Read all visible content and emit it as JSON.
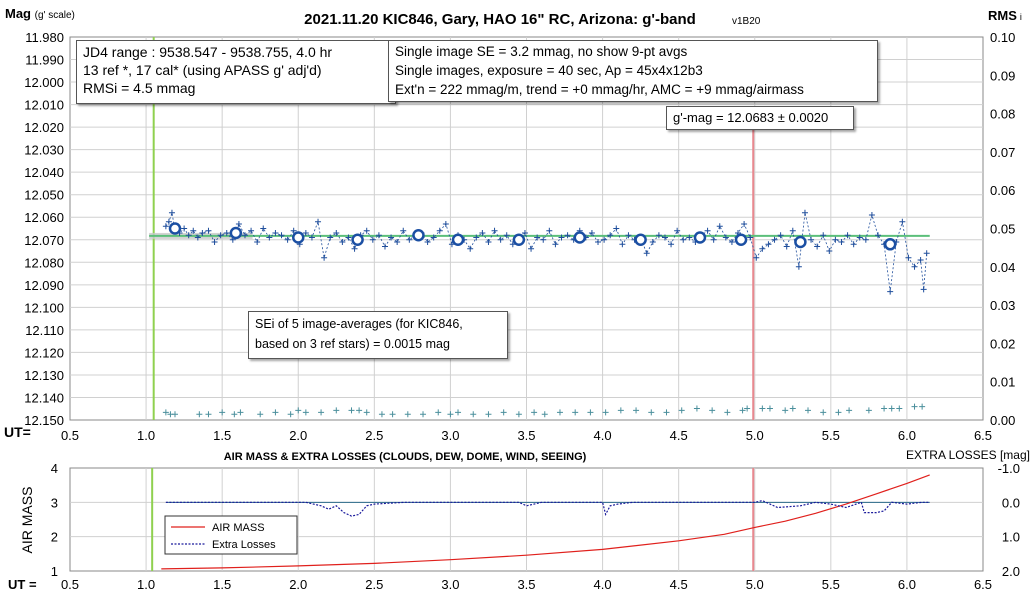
{
  "colors": {
    "primary": "#1f4e9c",
    "primary_marker": "#1b4fa3",
    "fit_line": "#5bbf7a",
    "rms": "#4a8f9c",
    "start_line": "#8fd14f",
    "meridian_line": "#e8888f",
    "airmass": "#e0201c",
    "losses": "#1a1a9c"
  },
  "top": {
    "title": "2021.11.20 KIC846, Gary, HAO 16\" RC, Arizona: g'-band",
    "version": "v1B20",
    "ylabel_main": "Mag",
    "ylabel_sub": "(g' scale)",
    "ylabel_right": "RMS",
    "ylabel_right_sub": "i",
    "ut_label": "UT=",
    "x_ticks": [
      "0.5",
      "1.0",
      "1.5",
      "2.0",
      "2.5",
      "3.0",
      "3.5",
      "4.0",
      "4.5",
      "5.0",
      "5.5",
      "6.0",
      "6.5"
    ],
    "y_ticks": [
      "11.980",
      "11.990",
      "12.000",
      "12.010",
      "12.020",
      "12.030",
      "12.040",
      "12.050",
      "12.060",
      "12.070",
      "12.080",
      "12.090",
      "12.100",
      "12.110",
      "12.120",
      "12.130",
      "12.140",
      "12.150"
    ],
    "y2_ticks": [
      "0.10",
      "0.09",
      "0.08",
      "0.07",
      "0.06",
      "0.05",
      "0.04",
      "0.03",
      "0.02",
      "0.01",
      "0.00"
    ],
    "info_left": [
      "JD4 range : 9538.547 - 9538.755,  4.0  hr",
      "13 ref *, 17 cal* (using APASS g' adj'd)",
      "RMSi = 4.5 mmag"
    ],
    "info_right": [
      "Single image SE = 3.2 mmag, no show  9-pt avgs",
      "Single images, exposure = 40 sec, Ap = 45x4x12b3",
      "Ext'n = 222 mmag/m, trend = +0 mmag/hr, AMC = +9 mmag/airmass"
    ],
    "gmag_box": "g'-mag = 12.0683 ± 0.0020",
    "sei_box": [
      "SEi of 5 image-averages (for KIC846,",
      "based on 3 ref stars) = 0.0015 mag"
    ]
  },
  "bottom": {
    "title": "AIR MASS & EXTRA LOSSES (CLOUDS, DEW, DOME, WIND, SEEING)",
    "ylabel_left": "AIR MASS",
    "ylabel_right": "EXTRA LOSSES [mag]",
    "ut_label": "UT =",
    "x_ticks": [
      "0.5",
      "1.0",
      "1.5",
      "2.0",
      "2.5",
      "3.0",
      "3.5",
      "4.0",
      "4.5",
      "5.0",
      "5.5",
      "6.0",
      "6.5"
    ],
    "y_ticks": [
      "4",
      "3",
      "2",
      "1"
    ],
    "y2_ticks": [
      "-1.0",
      "0.0",
      "1.0",
      "2.0"
    ],
    "legend": [
      "AIR MASS",
      "Extra Losses"
    ]
  },
  "chart_data": [
    {
      "type": "scatter",
      "title": "2021.11.20 KIC846, Gary, HAO 16\" RC, Arizona: g'-band",
      "xlabel": "UT=",
      "ylabel": "Mag (g' scale)",
      "y2label": "RMSi",
      "xlim": [
        0.5,
        6.5
      ],
      "ylim": [
        11.98,
        12.15
      ],
      "y_inverted": true,
      "y2lim": [
        0.0,
        0.1
      ],
      "start_line_x": 1.05,
      "meridian_line_x": 4.99,
      "fit": {
        "x": [
          1.02,
          6.15
        ],
        "y": [
          12.0683,
          12.0683
        ]
      },
      "series": [
        {
          "marker": "circle",
          "x": [
            1.19,
            1.59,
            2.0,
            2.39,
            2.79,
            3.05,
            3.45,
            3.85,
            4.25,
            4.64,
            4.91,
            5.3,
            5.89
          ],
          "y": [
            12.065,
            12.067,
            12.069,
            12.07,
            12.068,
            12.07,
            12.07,
            12.069,
            12.07,
            12.069,
            12.07,
            12.071,
            12.072
          ]
        },
        {
          "marker": "plus",
          "x": [
            1.13,
            1.15,
            1.17,
            1.19,
            1.22,
            1.25,
            1.28,
            1.31,
            1.34,
            1.37,
            1.41,
            1.45,
            1.49,
            1.53,
            1.57,
            1.61,
            1.65,
            1.69,
            1.73,
            1.77,
            1.81,
            1.85,
            1.89,
            1.93,
            1.97,
            2.01,
            2.05,
            2.09,
            2.13,
            2.17,
            2.21,
            2.25,
            2.29,
            2.33,
            2.37,
            2.41,
            2.45,
            2.49,
            2.53,
            2.57,
            2.61,
            2.65,
            2.69,
            2.73,
            2.77,
            2.81,
            2.85,
            2.89,
            2.93,
            2.97,
            3.01,
            3.05,
            3.09,
            3.13,
            3.17,
            3.21,
            3.25,
            3.29,
            3.33,
            3.37,
            3.41,
            3.45,
            3.49,
            3.53,
            3.57,
            3.61,
            3.65,
            3.69,
            3.73,
            3.77,
            3.81,
            3.85,
            3.89,
            3.93,
            3.97,
            4.01,
            4.05,
            4.09,
            4.13,
            4.17,
            4.21,
            4.25,
            4.29,
            4.33,
            4.37,
            4.41,
            4.45,
            4.49,
            4.53,
            4.57,
            4.61,
            4.65,
            4.69,
            4.73,
            4.77,
            4.81,
            4.85,
            4.89,
            4.93,
            4.97,
            5.01,
            5.05,
            5.09,
            5.13,
            5.17,
            5.21,
            5.25,
            5.29,
            5.33,
            5.37,
            5.41,
            5.45,
            5.49,
            5.53,
            5.57,
            5.61,
            5.65,
            5.69,
            5.73,
            5.77,
            5.81,
            5.85,
            5.89,
            5.93,
            5.97,
            6.01,
            6.05,
            6.09,
            6.11,
            6.13
          ],
          "y": [
            12.064,
            12.062,
            12.058,
            12.066,
            12.067,
            12.065,
            12.068,
            12.066,
            12.069,
            12.067,
            12.066,
            12.071,
            12.068,
            12.067,
            12.07,
            12.063,
            12.068,
            12.066,
            12.071,
            12.065,
            12.069,
            12.067,
            12.068,
            12.07,
            12.066,
            12.072,
            12.067,
            12.069,
            12.062,
            12.078,
            12.069,
            12.067,
            12.071,
            12.069,
            12.074,
            12.068,
            12.066,
            12.07,
            12.068,
            12.073,
            12.069,
            12.071,
            12.066,
            12.07,
            12.068,
            12.067,
            12.071,
            12.069,
            12.066,
            12.063,
            12.072,
            12.068,
            12.07,
            12.074,
            12.069,
            12.067,
            12.071,
            12.066,
            12.07,
            12.068,
            12.072,
            12.069,
            12.067,
            12.074,
            12.069,
            12.07,
            12.066,
            12.072,
            12.069,
            12.068,
            12.07,
            12.066,
            12.069,
            12.067,
            12.071,
            12.07,
            12.068,
            12.065,
            12.072,
            12.068,
            12.07,
            12.069,
            12.076,
            12.071,
            12.068,
            12.069,
            12.072,
            12.066,
            12.07,
            12.069,
            12.071,
            12.068,
            12.066,
            12.07,
            12.064,
            12.069,
            12.071,
            12.067,
            12.063,
            12.069,
            12.078,
            12.074,
            12.072,
            12.07,
            12.068,
            12.073,
            12.066,
            12.082,
            12.058,
            12.07,
            12.073,
            12.068,
            12.075,
            12.07,
            12.071,
            12.068,
            12.072,
            12.069,
            12.07,
            12.059,
            12.068,
            12.072,
            12.093,
            12.071,
            12.062,
            12.078,
            12.082,
            12.079,
            12.092,
            12.076
          ]
        },
        {
          "marker": "plus",
          "axis": "y2",
          "name": "",
          "x": [
            1.13,
            1.16,
            1.19,
            1.35,
            1.41,
            1.5,
            1.58,
            1.62,
            1.75,
            1.85,
            1.95,
            2.0,
            2.05,
            2.15,
            2.25,
            2.35,
            2.4,
            2.45,
            2.55,
            2.62,
            2.72,
            2.82,
            2.92,
            3.0,
            3.05,
            3.15,
            3.25,
            3.35,
            3.45,
            3.55,
            3.62,
            3.72,
            3.82,
            3.92,
            4.02,
            4.12,
            4.22,
            4.32,
            4.42,
            4.52,
            4.62,
            4.72,
            4.82,
            4.92,
            4.95,
            5.05,
            5.1,
            5.2,
            5.25,
            5.35,
            5.45,
            5.55,
            5.62,
            5.75,
            5.85,
            5.9,
            5.95,
            6.05,
            6.1
          ],
          "y": [
            0.002,
            0.0015,
            0.0015,
            0.0015,
            0.0015,
            0.002,
            0.0015,
            0.002,
            0.0015,
            0.002,
            0.0015,
            0.0025,
            0.002,
            0.002,
            0.0025,
            0.0025,
            0.0025,
            0.002,
            0.0015,
            0.0015,
            0.0015,
            0.0015,
            0.002,
            0.0015,
            0.002,
            0.0015,
            0.0015,
            0.002,
            0.0015,
            0.002,
            0.0015,
            0.002,
            0.002,
            0.002,
            0.002,
            0.0025,
            0.0025,
            0.002,
            0.002,
            0.0025,
            0.003,
            0.0025,
            0.002,
            0.0025,
            0.003,
            0.003,
            0.003,
            0.0025,
            0.003,
            0.0025,
            0.002,
            0.002,
            0.0025,
            0.0025,
            0.003,
            0.003,
            0.003,
            0.0035,
            0.0035
          ]
        }
      ]
    },
    {
      "type": "line",
      "title": "AIR MASS & EXTRA LOSSES (CLOUDS, DEW, DOME, WIND, SEEING)",
      "xlabel": "UT =",
      "ylabel": "AIR MASS",
      "y2label": "EXTRA LOSSES [mag]",
      "xlim": [
        0.5,
        6.5
      ],
      "ylim": [
        1,
        4
      ],
      "y2lim": [
        -1.0,
        2.0
      ],
      "y2_inverted": true,
      "start_line_x": 1.04,
      "meridian_line_x": 4.99,
      "series": [
        {
          "name": "AIR MASS",
          "axis": "y",
          "x": [
            1.1,
            1.5,
            2.0,
            2.5,
            3.0,
            3.5,
            4.0,
            4.5,
            4.8,
            5.0,
            5.2,
            5.4,
            5.6,
            5.8,
            6.0,
            6.15
          ],
          "y": [
            1.06,
            1.09,
            1.15,
            1.22,
            1.33,
            1.46,
            1.63,
            1.88,
            2.07,
            2.27,
            2.45,
            2.68,
            2.95,
            3.25,
            3.55,
            3.8
          ]
        },
        {
          "name": "Extra Losses",
          "axis": "y2",
          "x": [
            1.13,
            1.3,
            1.5,
            1.7,
            1.9,
            2.05,
            2.1,
            2.15,
            2.2,
            2.25,
            2.3,
            2.35,
            2.4,
            2.45,
            2.5,
            2.7,
            2.9,
            3.1,
            3.3,
            3.45,
            3.5,
            3.55,
            3.6,
            3.8,
            4.0,
            4.02,
            4.05,
            4.1,
            4.2,
            4.4,
            4.6,
            4.8,
            4.95,
            5.0,
            5.05,
            5.1,
            5.15,
            5.3,
            5.4,
            5.5,
            5.6,
            5.7,
            5.72,
            5.75,
            5.8,
            5.85,
            5.9,
            6.0,
            6.1,
            6.15
          ],
          "y": [
            0.0,
            0.0,
            0.0,
            0.0,
            0.0,
            0.0,
            0.05,
            0.1,
            0.2,
            0.1,
            0.3,
            0.4,
            0.35,
            0.1,
            0.05,
            0.0,
            0.0,
            0.0,
            0.0,
            0.0,
            0.1,
            0.05,
            0.0,
            0.0,
            0.0,
            0.35,
            0.1,
            0.05,
            0.0,
            0.0,
            0.0,
            0.0,
            0.0,
            0.0,
            -0.05,
            0.05,
            0.15,
            0.1,
            0.0,
            0.05,
            0.15,
            0.0,
            0.3,
            0.3,
            0.3,
            0.25,
            0.0,
            0.05,
            0.0,
            0.0
          ]
        }
      ]
    }
  ]
}
